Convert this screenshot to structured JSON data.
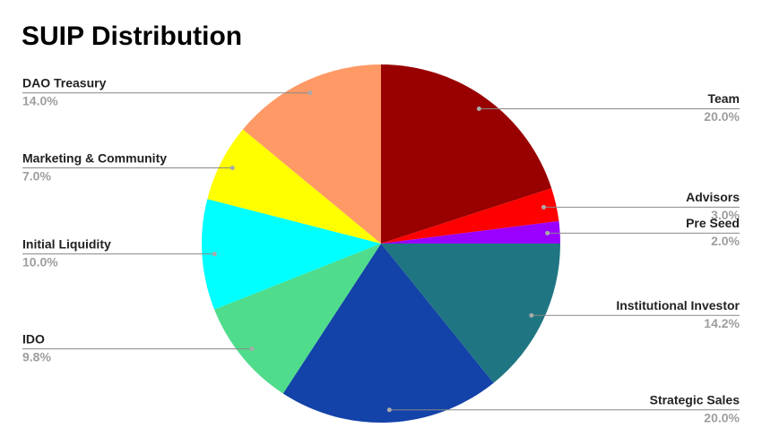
{
  "chart_data": {
    "type": "pie",
    "title": "SUIP Distribution",
    "categories": [
      "Team",
      "Advisors",
      "Pre Seed",
      "Institutional Investor",
      "Strategic Sales",
      "IDO",
      "Initial Liquidity",
      "Marketing & Community",
      "DAO Treasury"
    ],
    "values": [
      20,
      3,
      2,
      14.2,
      20,
      9.8,
      10,
      7,
      14
    ],
    "value_labels": [
      "20.0%",
      "3.0%",
      "2.0%",
      "14.2%",
      "20.0%",
      "9.8%",
      "10.0%",
      "7.0%",
      "14.0%"
    ],
    "colors": [
      "#990000",
      "#ff0000",
      "#9900ff",
      "#1f7682",
      "#1342a8",
      "#4fdc8c",
      "#00ffff",
      "#ffff00",
      "#ff9966"
    ]
  }
}
